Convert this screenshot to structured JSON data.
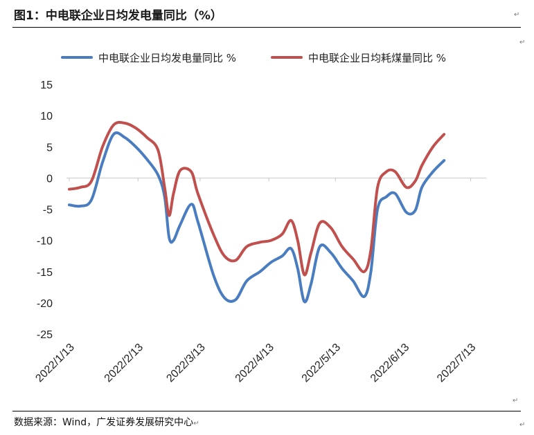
{
  "figure": {
    "title": "图1：中电联企业日均发电量同比（%）",
    "source": "数据来源：Wind，广发证券发展研究中心",
    "return_mark": "↵"
  },
  "chart_data": {
    "type": "line",
    "title": "",
    "xlabel": "",
    "ylabel": "",
    "ylim": [
      -25,
      15
    ],
    "yticks": [
      15,
      10,
      5,
      0,
      -5,
      -10,
      -15,
      -20,
      -25
    ],
    "x_range": [
      "2022/1/13",
      "2022/7/20"
    ],
    "xticks": [
      "2022/1/13",
      "2022/2/13",
      "2022/3/13",
      "2022/4/13",
      "2022/5/13",
      "2022/6/13",
      "2022/7/13"
    ],
    "grid": false,
    "legend": "top",
    "series": [
      {
        "name": "中电联企业日均发电量同比 %",
        "color": "#4a7dbf",
        "points": [
          [
            "2022/1/13",
            -4.3
          ],
          [
            "2022/1/18",
            -4.5
          ],
          [
            "2022/1/23",
            -3.5
          ],
          [
            "2022/1/28",
            2.5
          ],
          [
            "2022/2/2",
            7.0
          ],
          [
            "2022/2/7",
            6.5
          ],
          [
            "2022/2/12",
            5.0
          ],
          [
            "2022/2/17",
            3.0
          ],
          [
            "2022/2/22",
            0.5
          ],
          [
            "2022/2/25",
            -3.0
          ],
          [
            "2022/2/27",
            -9.5
          ],
          [
            "2022/3/1",
            -10.0
          ],
          [
            "2022/3/4",
            -7.5
          ],
          [
            "2022/3/9",
            -4.2
          ],
          [
            "2022/3/12",
            -7.0
          ],
          [
            "2022/3/19",
            -15.5
          ],
          [
            "2022/3/24",
            -19.2
          ],
          [
            "2022/3/29",
            -19.5
          ],
          [
            "2022/4/3",
            -16.5
          ],
          [
            "2022/4/9",
            -15.0
          ],
          [
            "2022/4/14",
            -13.5
          ],
          [
            "2022/4/19",
            -12.5
          ],
          [
            "2022/4/23",
            -11.3
          ],
          [
            "2022/4/26",
            -14.5
          ],
          [
            "2022/4/29",
            -19.8
          ],
          [
            "2022/5/2",
            -17.0
          ],
          [
            "2022/5/6",
            -11.0
          ],
          [
            "2022/5/11",
            -12.0
          ],
          [
            "2022/5/16",
            -14.5
          ],
          [
            "2022/5/21",
            -16.5
          ],
          [
            "2022/5/26",
            -19.0
          ],
          [
            "2022/5/29",
            -15.0
          ],
          [
            "2022/6/1",
            -5.0
          ],
          [
            "2022/6/5",
            -3.0
          ],
          [
            "2022/6/9",
            -2.5
          ],
          [
            "2022/6/14",
            -5.5
          ],
          [
            "2022/6/18",
            -5.2
          ],
          [
            "2022/6/21",
            -1.5
          ],
          [
            "2022/6/26",
            1.0
          ],
          [
            "2022/7/1",
            2.8
          ]
        ]
      },
      {
        "name": "中电联企业日均耗煤量同比 %",
        "color": "#c0504d",
        "points": [
          [
            "2022/1/13",
            -1.8
          ],
          [
            "2022/1/18",
            -1.5
          ],
          [
            "2022/1/23",
            -0.5
          ],
          [
            "2022/1/28",
            5.0
          ],
          [
            "2022/2/2",
            8.5
          ],
          [
            "2022/2/7",
            8.8
          ],
          [
            "2022/2/12",
            8.0
          ],
          [
            "2022/2/17",
            6.5
          ],
          [
            "2022/2/22",
            4.5
          ],
          [
            "2022/2/25",
            -1.5
          ],
          [
            "2022/2/27",
            -6.0
          ],
          [
            "2022/3/1",
            -2.5
          ],
          [
            "2022/3/4",
            1.2
          ],
          [
            "2022/3/9",
            1.0
          ],
          [
            "2022/3/12",
            -2.5
          ],
          [
            "2022/3/19",
            -9.0
          ],
          [
            "2022/3/24",
            -12.5
          ],
          [
            "2022/3/29",
            -13.2
          ],
          [
            "2022/4/3",
            -11.0
          ],
          [
            "2022/4/9",
            -10.3
          ],
          [
            "2022/4/14",
            -10.0
          ],
          [
            "2022/4/19",
            -9.0
          ],
          [
            "2022/4/23",
            -6.8
          ],
          [
            "2022/4/26",
            -10.0
          ],
          [
            "2022/4/29",
            -15.5
          ],
          [
            "2022/5/2",
            -12.0
          ],
          [
            "2022/5/6",
            -7.2
          ],
          [
            "2022/5/11",
            -8.0
          ],
          [
            "2022/5/16",
            -11.0
          ],
          [
            "2022/5/21",
            -13.0
          ],
          [
            "2022/5/26",
            -15.0
          ],
          [
            "2022/5/29",
            -11.5
          ],
          [
            "2022/6/1",
            -1.5
          ],
          [
            "2022/6/5",
            1.0
          ],
          [
            "2022/6/9",
            1.0
          ],
          [
            "2022/6/14",
            -1.5
          ],
          [
            "2022/6/18",
            -0.5
          ],
          [
            "2022/6/21",
            2.0
          ],
          [
            "2022/6/26",
            5.0
          ],
          [
            "2022/7/1",
            7.0
          ]
        ]
      }
    ]
  }
}
